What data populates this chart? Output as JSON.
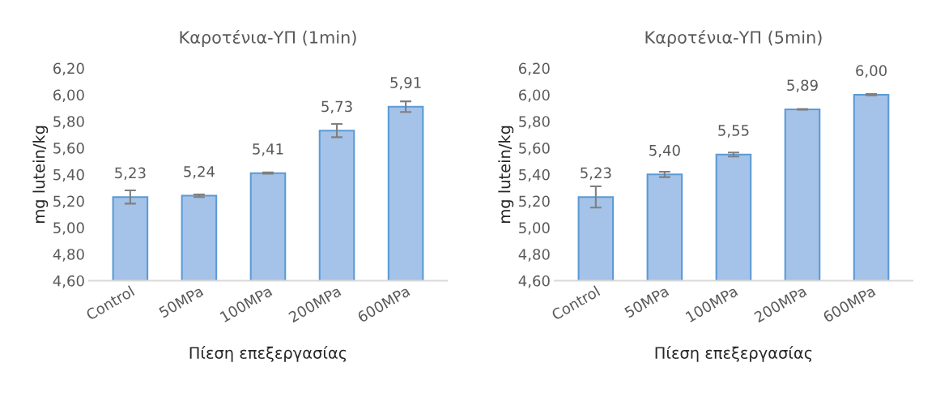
{
  "chart_data": [
    {
      "type": "bar",
      "title": "Καροτένια-ΥΠ (1min)",
      "xlabel": "Πίεση επεξεργασίας",
      "ylabel": "mg lutein/kg",
      "categories": [
        "Control",
        "50MPa",
        "100MPa",
        "200MPa",
        "600MPa"
      ],
      "values": [
        5.23,
        5.24,
        5.41,
        5.73,
        5.91
      ],
      "errors": [
        0.05,
        0.01,
        0.005,
        0.05,
        0.04
      ],
      "value_labels": [
        "5,23",
        "5,24",
        "5,41",
        "5,73",
        "5,91"
      ],
      "color": "#a5c2e8",
      "ylim": [
        4.6,
        6.2
      ],
      "yticks": [
        {
          "value": 4.6,
          "label": "4,60"
        },
        {
          "value": 4.8,
          "label": "4,80"
        },
        {
          "value": 5.0,
          "label": "5,00"
        },
        {
          "value": 5.2,
          "label": "5,20"
        },
        {
          "value": 5.4,
          "label": "5,40"
        },
        {
          "value": 5.6,
          "label": "5,60"
        },
        {
          "value": 5.8,
          "label": "5,80"
        },
        {
          "value": 6.0,
          "label": "6,00"
        },
        {
          "value": 6.2,
          "label": "6,20"
        }
      ],
      "grid": false,
      "legend": false
    },
    {
      "type": "bar",
      "title": "Καροτένια-ΥΠ (5min)",
      "xlabel": "Πίεση επεξεργασίας",
      "ylabel": "mg lutein/kg",
      "categories": [
        "Control",
        "50MPa",
        "100MPa",
        "200MPa",
        "600MPa"
      ],
      "values": [
        5.23,
        5.4,
        5.55,
        5.89,
        6.0
      ],
      "errors": [
        0.08,
        0.02,
        0.015,
        0.003,
        0.005
      ],
      "value_labels": [
        "5,23",
        "5,40",
        "5,55",
        "5,89",
        "6,00"
      ],
      "color": "#a5c2e8",
      "ylim": [
        4.6,
        6.2
      ],
      "yticks": [
        {
          "value": 4.6,
          "label": "4,60"
        },
        {
          "value": 4.8,
          "label": "4,80"
        },
        {
          "value": 5.0,
          "label": "5,00"
        },
        {
          "value": 5.2,
          "label": "5,20"
        },
        {
          "value": 5.4,
          "label": "5,40"
        },
        {
          "value": 5.6,
          "label": "5,60"
        },
        {
          "value": 5.8,
          "label": "5,80"
        },
        {
          "value": 6.0,
          "label": "6,00"
        },
        {
          "value": 6.2,
          "label": "6,20"
        }
      ],
      "grid": false,
      "legend": false
    }
  ]
}
